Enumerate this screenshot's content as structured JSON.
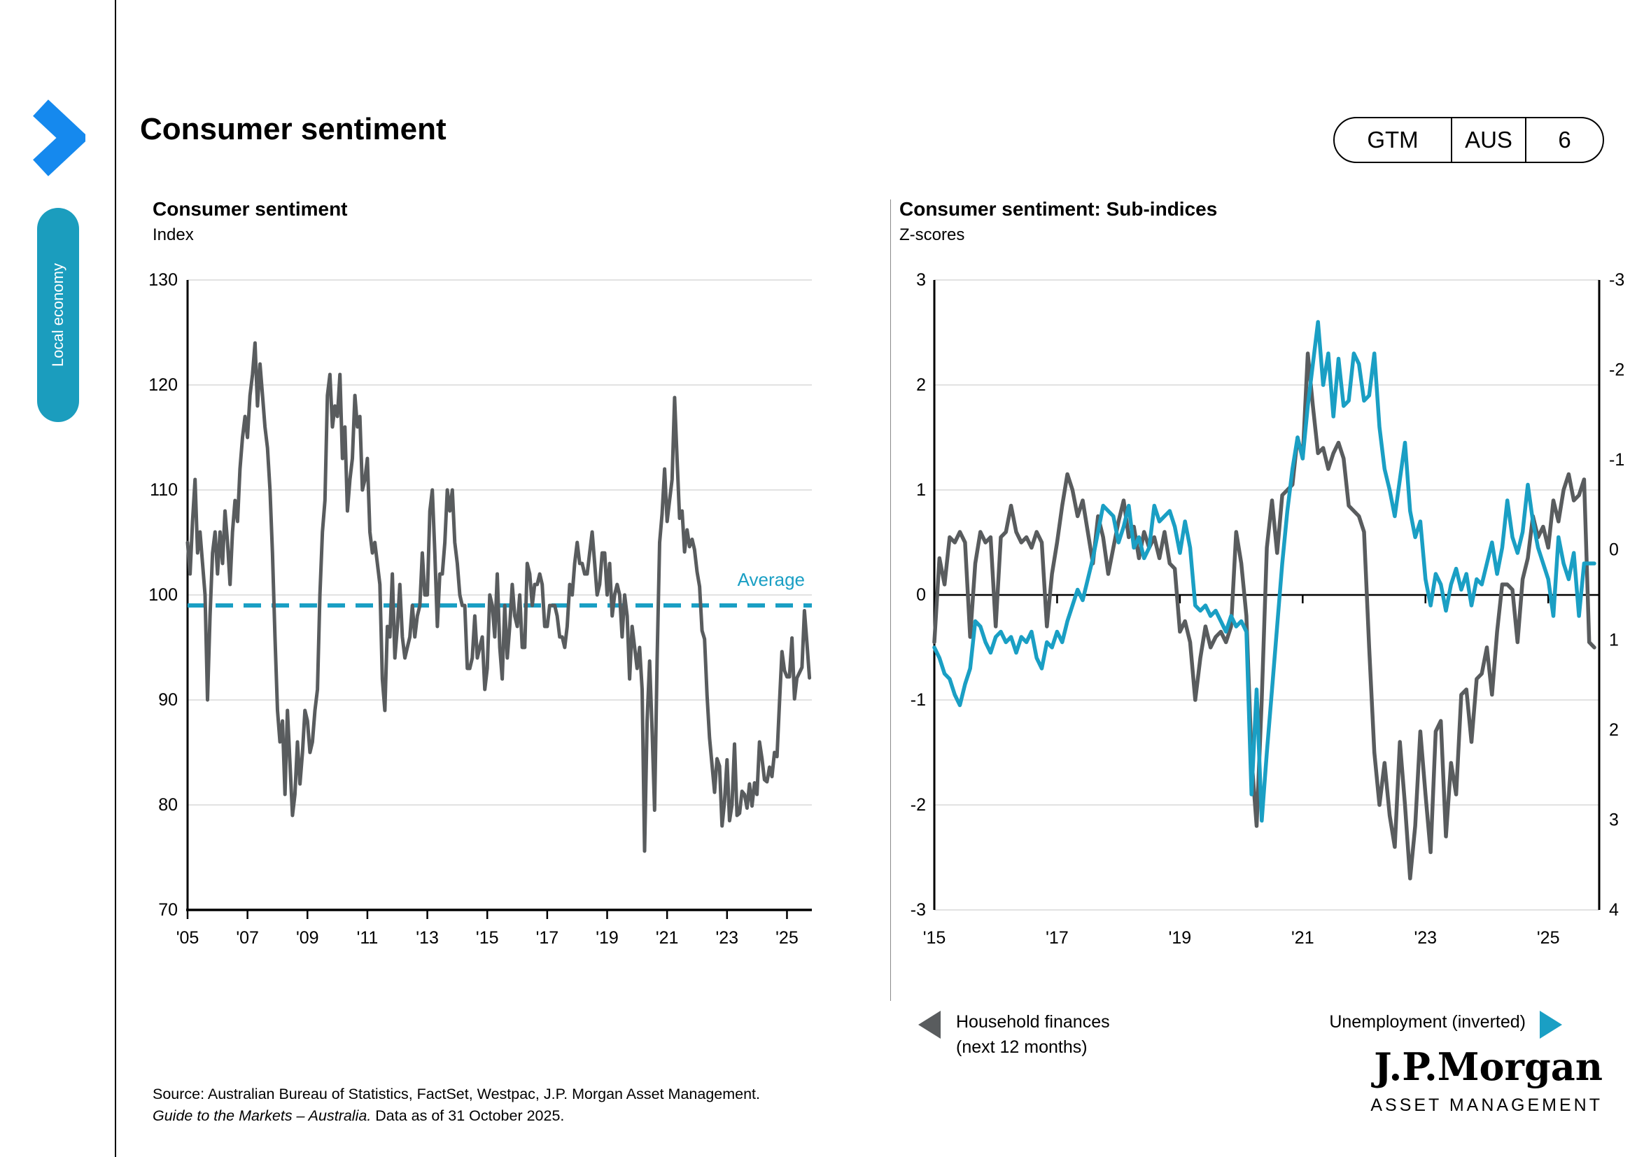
{
  "page": {
    "title": "Consumer sentiment",
    "badge": {
      "gtm": "GTM",
      "region": "AUS",
      "page_number": "6"
    },
    "side_tab": "Local economy"
  },
  "colors": {
    "accent_teal": "#1A9FC4",
    "sidebar_teal": "#1B9DBE",
    "chevron_blue": "#1589EE",
    "line_gray": "#595C5E",
    "gridline": "#D9D9D9"
  },
  "legend": {
    "series1_line1": "Household finances",
    "series1_line2": "(next 12 months)",
    "series2_label": "Unemployment (inverted)"
  },
  "source": {
    "line1": "Source: Australian Bureau of Statistics, FactSet, Westpac, J.P. Morgan Asset Management.",
    "line2_italic": "Guide to the Markets – Australia.",
    "line2_rest": " Data as of 31 October 2025."
  },
  "logo": {
    "brand": "J.P.Morgan",
    "sub": "ASSET MANAGEMENT"
  },
  "chart_data": [
    {
      "type": "line",
      "title": "Consumer sentiment",
      "ylabel": "Index",
      "ylim": [
        70,
        130
      ],
      "yticks": [
        130,
        120,
        110,
        100,
        90,
        80,
        70
      ],
      "xtick_labels": [
        "'05",
        "'07",
        "'09",
        "'11",
        "'13",
        "'15",
        "'17",
        "'19",
        "'21",
        "'23",
        "'25"
      ],
      "xtick_years": [
        2005,
        2007,
        2009,
        2011,
        2013,
        2015,
        2017,
        2019,
        2021,
        2023,
        2025
      ],
      "x_start_year": 2005,
      "x_end": 2025.83,
      "grid": "horizontal",
      "average_line": {
        "value": 99,
        "label": "Average"
      },
      "series": [
        {
          "name": "Consumer sentiment index",
          "color": "#595C5E",
          "frequency": "monthly",
          "values": [
            105,
            102,
            107,
            111,
            104,
            106,
            103,
            100,
            90,
            98,
            104,
            106,
            102,
            106,
            103,
            108,
            105,
            101,
            106,
            109,
            107,
            112,
            115,
            117,
            115,
            119,
            121,
            124,
            118,
            122,
            119,
            116,
            114,
            110,
            104,
            96,
            89,
            86,
            88,
            81,
            89,
            84,
            79,
            81,
            86,
            82,
            85,
            89,
            88,
            85,
            86,
            89,
            91,
            100,
            106,
            109,
            119,
            121,
            116,
            118,
            117,
            121,
            113,
            116,
            108,
            111,
            113,
            119,
            116,
            117,
            110,
            111,
            113,
            106,
            104,
            105,
            103,
            101,
            92,
            89,
            97,
            96,
            102,
            94,
            97,
            101,
            96,
            94,
            95,
            96,
            99,
            96,
            98,
            99,
            104,
            100,
            100,
            108,
            110,
            104,
            97,
            102,
            102,
            105,
            110,
            108,
            110,
            105,
            103,
            100,
            99,
            99,
            93,
            93,
            94,
            98,
            94,
            95,
            96,
            91,
            93,
            100,
            99,
            96,
            102,
            95,
            92,
            99,
            94,
            97,
            101,
            98,
            97,
            100,
            95,
            95,
            103,
            102,
            99,
            101,
            101,
            102,
            101,
            97,
            97,
            99,
            99,
            99,
            98,
            96,
            96,
            95,
            97,
            101,
            100,
            103,
            105,
            103,
            103,
            102,
            102,
            104,
            106,
            103,
            100,
            101,
            104,
            104,
            100,
            103,
            98,
            100,
            101,
            100,
            96,
            100,
            98,
            92,
            97,
            95,
            93,
            95,
            91,
            75.6,
            88,
            93.7,
            87,
            79.5,
            93.8,
            105,
            107.7,
            112,
            107,
            109,
            111,
            118.8,
            113,
            107.3,
            108,
            104.1,
            106.2,
            104.6,
            105.3,
            104.3,
            102.2,
            100.8,
            96.6,
            95.8,
            90.4,
            86.4,
            83.8,
            81.2,
            84.4,
            83.7,
            78,
            80.3,
            84.3,
            78.5,
            80,
            85.8,
            79,
            79.2,
            81.3,
            81,
            79.7,
            82,
            79.9,
            82.1,
            81,
            86,
            84.4,
            82.4,
            82.2,
            83.6,
            82.7,
            85,
            84.6,
            89.8,
            94.6,
            92.8,
            92.2,
            92.2,
            95.9,
            90.1,
            92.1,
            92.6,
            93.1,
            98.5,
            95.4,
            92.1
          ]
        }
      ]
    },
    {
      "type": "line",
      "title": "Consumer sentiment: Sub-indices",
      "ylabel": "Z-scores",
      "ylim_left": [
        -3,
        3
      ],
      "yticks_left": [
        3,
        2,
        1,
        0,
        -1,
        -2,
        -3
      ],
      "yticks_right": [
        -3,
        -2,
        -1,
        0,
        1,
        2,
        3,
        4
      ],
      "right_axis_note": "right axis inverted, used for unemployment",
      "xtick_labels": [
        "'15",
        "'17",
        "'19",
        "'21",
        "'23",
        "'25"
      ],
      "xtick_years": [
        2015,
        2017,
        2019,
        2021,
        2023,
        2025
      ],
      "x_start_year": 2015,
      "x_end": 2025.83,
      "grid": "horizontal",
      "series": [
        {
          "name": "Household finances (next 12 months)",
          "axis": "left",
          "color": "#595C5E",
          "frequency": "monthly",
          "values": [
            -0.45,
            0.35,
            0.1,
            0.55,
            0.5,
            0.6,
            0.5,
            -0.4,
            0.3,
            0.6,
            0.5,
            0.55,
            -0.3,
            0.55,
            0.6,
            0.85,
            0.6,
            0.5,
            0.55,
            0.45,
            0.6,
            0.5,
            -0.3,
            0.2,
            0.5,
            0.85,
            1.15,
            1.0,
            0.75,
            0.9,
            0.6,
            0.3,
            0.75,
            0.55,
            0.2,
            0.45,
            0.7,
            0.9,
            0.55,
            0.65,
            0.35,
            0.6,
            0.45,
            0.55,
            0.35,
            0.6,
            0.3,
            0.25,
            -0.35,
            -0.25,
            -0.45,
            -1.0,
            -0.6,
            -0.3,
            -0.5,
            -0.4,
            -0.35,
            -0.45,
            -0.3,
            0.6,
            0.3,
            -0.2,
            -1.55,
            -2.2,
            -1.0,
            0.45,
            0.9,
            0.4,
            0.95,
            1.0,
            1.05,
            1.5,
            1.3,
            2.3,
            1.8,
            1.35,
            1.4,
            1.2,
            1.35,
            1.45,
            1.3,
            0.85,
            0.8,
            0.75,
            0.6,
            -0.5,
            -1.5,
            -2.0,
            -1.6,
            -2.1,
            -2.4,
            -1.4,
            -2.0,
            -2.7,
            -2.2,
            -1.3,
            -1.9,
            -2.45,
            -1.3,
            -1.2,
            -2.3,
            -1.6,
            -1.9,
            -0.95,
            -0.9,
            -1.4,
            -0.8,
            -0.75,
            -0.5,
            -0.95,
            -0.35,
            0.1,
            0.1,
            0.05,
            -0.45,
            0.15,
            0.35,
            0.75,
            0.55,
            0.65,
            0.45,
            0.9,
            0.7,
            1.0,
            1.15,
            0.9,
            0.95,
            1.1,
            -0.45,
            -0.5
          ]
        },
        {
          "name": "Unemployment (inverted)",
          "axis": "right",
          "color": "#1A9FC4",
          "frequency": "monthly",
          "values": [
            -0.5,
            -0.6,
            -0.75,
            -0.8,
            -0.95,
            -1.05,
            -0.85,
            -0.7,
            -0.25,
            -0.3,
            -0.45,
            -0.55,
            -0.4,
            -0.35,
            -0.45,
            -0.4,
            -0.55,
            -0.4,
            -0.45,
            -0.35,
            -0.6,
            -0.7,
            -0.45,
            -0.5,
            -0.35,
            -0.45,
            -0.25,
            -0.1,
            0.05,
            -0.05,
            0.15,
            0.35,
            0.6,
            0.85,
            0.8,
            0.75,
            0.5,
            0.65,
            0.85,
            0.45,
            0.55,
            0.35,
            0.45,
            0.85,
            0.7,
            0.75,
            0.8,
            0.65,
            0.4,
            0.7,
            0.45,
            -0.1,
            -0.15,
            -0.1,
            -0.2,
            -0.15,
            -0.25,
            -0.35,
            -0.2,
            -0.3,
            -0.25,
            -0.35,
            -1.9,
            -0.9,
            -2.15,
            -1.5,
            -0.9,
            -0.3,
            0.3,
            0.8,
            1.2,
            1.5,
            1.3,
            1.8,
            2.2,
            2.6,
            2.0,
            2.3,
            1.7,
            2.25,
            1.8,
            1.85,
            2.3,
            2.2,
            1.85,
            1.9,
            2.3,
            1.6,
            1.2,
            1.0,
            0.75,
            1.1,
            1.45,
            0.8,
            0.55,
            0.7,
            0.15,
            -0.1,
            0.2,
            0.1,
            -0.15,
            0.1,
            0.25,
            0.05,
            0.2,
            -0.1,
            0.15,
            0.1,
            0.3,
            0.5,
            0.2,
            0.45,
            0.9,
            0.55,
            0.4,
            0.6,
            1.05,
            0.7,
            0.45,
            0.3,
            0.15,
            -0.2,
            0.55,
            0.3,
            0.15,
            0.4,
            -0.2,
            0.3,
            0.3,
            0.3
          ]
        }
      ]
    }
  ]
}
